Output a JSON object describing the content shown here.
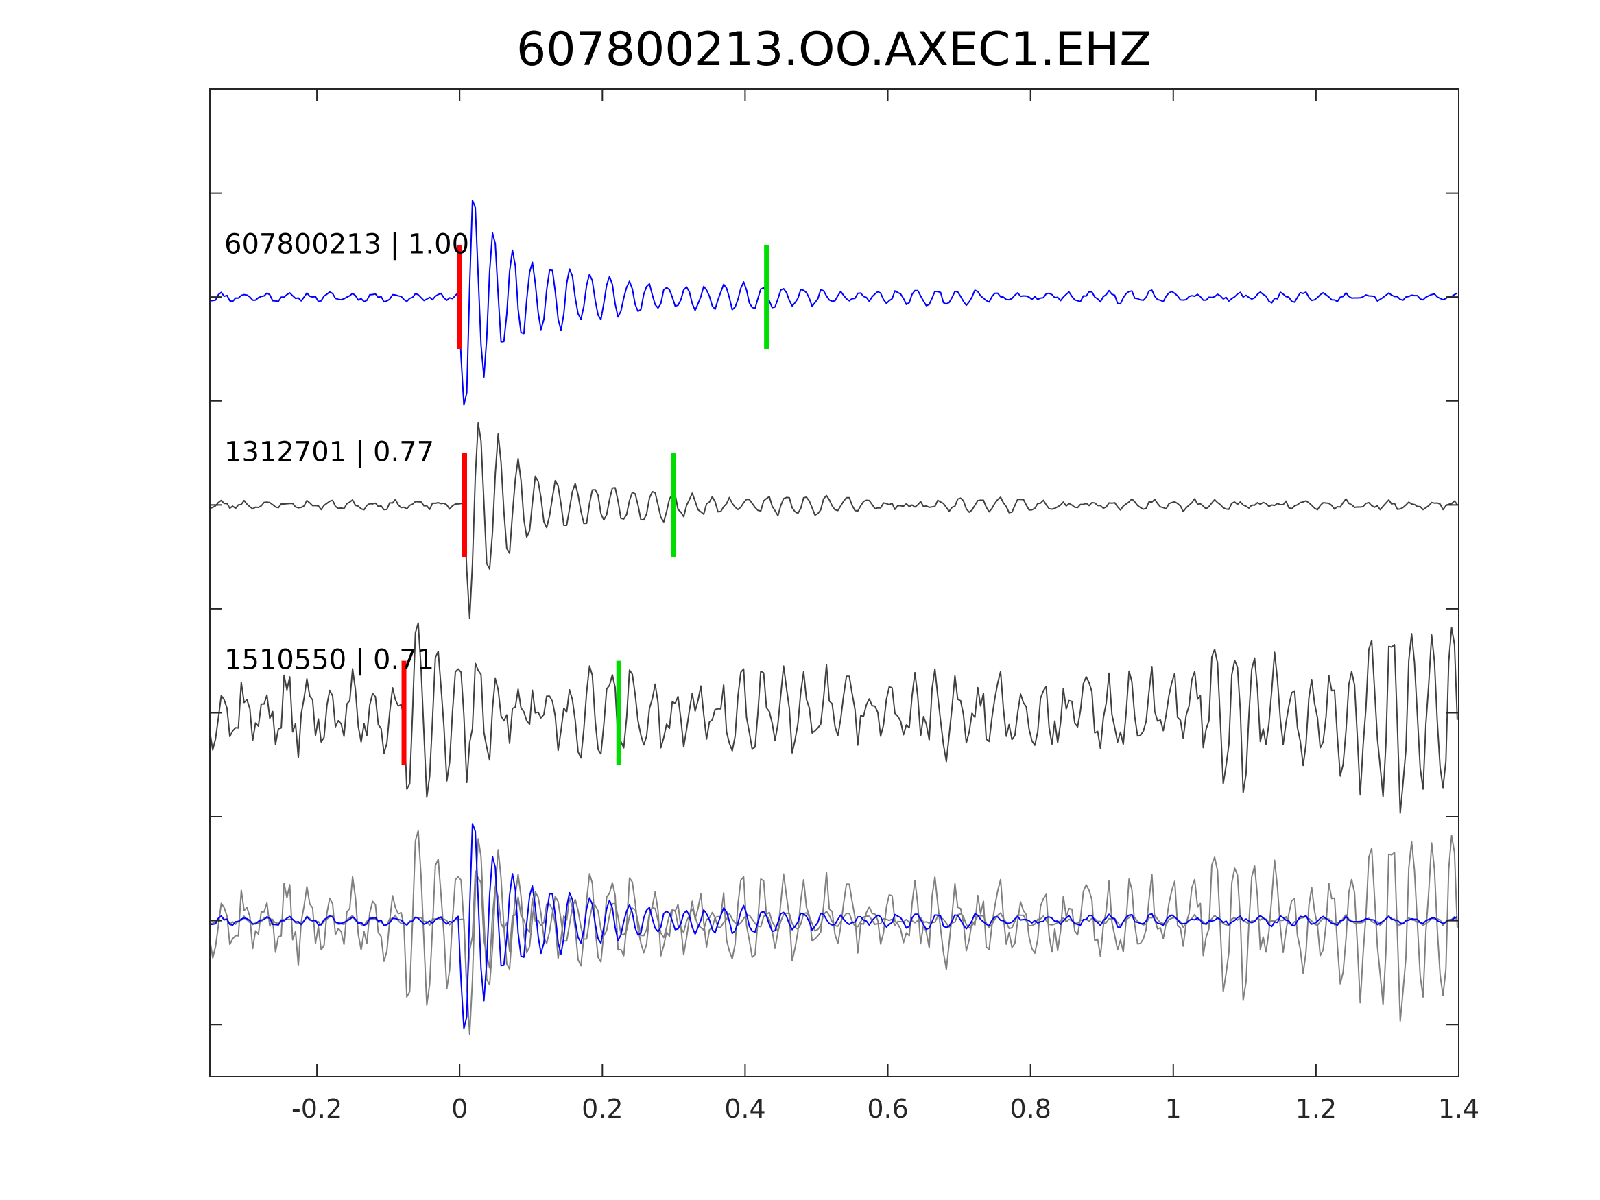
{
  "chart_data": {
    "type": "line",
    "title": "607800213.OO.AXEC1.EHZ",
    "xlabel": "",
    "ylabel": "",
    "xlim": [
      -0.35,
      1.4
    ],
    "ylim": [
      0,
      9.5
    ],
    "x_ticks": [
      "-0.2",
      "0",
      "0.2",
      "0.4",
      "0.6",
      "0.8",
      "1",
      "1.2",
      "1.4"
    ],
    "x_tick_values": [
      -0.2,
      0,
      0.2,
      0.4,
      0.6,
      0.8,
      1.0,
      1.2,
      1.4
    ],
    "y_tick_values": [
      0.5,
      1.5,
      2.5,
      3.5,
      4.5,
      5.5,
      6.5,
      7.5,
      8.5
    ],
    "grid": false,
    "legend": "none",
    "colors": {
      "reference": "#0000ff",
      "neighbor": "#404040",
      "overlay_gray": "#808080",
      "p_pick": "#ff0000",
      "s_pick": "#00dd00"
    },
    "traces": [
      {
        "label": "607800213 | 1.00",
        "baseline": 7.5,
        "color": "#0000ff",
        "p_pick": 0.0,
        "s_pick": 0.43,
        "noise": 0.05,
        "burst_amp": 1.0,
        "burst_freq": 37,
        "coda": 0.3,
        "seed": 11,
        "late_amp": 0.0
      },
      {
        "label": "1312701 | 0.77",
        "baseline": 5.5,
        "color": "#404040",
        "p_pick": 0.007,
        "s_pick": 0.3,
        "noise": 0.05,
        "burst_amp": 0.95,
        "burst_freq": 37,
        "coda": 0.25,
        "seed": 23,
        "late_amp": 0.0
      },
      {
        "label": "1510550 | 0.71",
        "baseline": 3.5,
        "color": "#404040",
        "p_pick": -0.078,
        "s_pick": 0.223,
        "noise": 0.42,
        "burst_amp": 0.5,
        "burst_freq": 37,
        "coda": 0.4,
        "seed": 37,
        "late_amp": 0.55
      }
    ],
    "overlay_baseline": 1.5
  }
}
